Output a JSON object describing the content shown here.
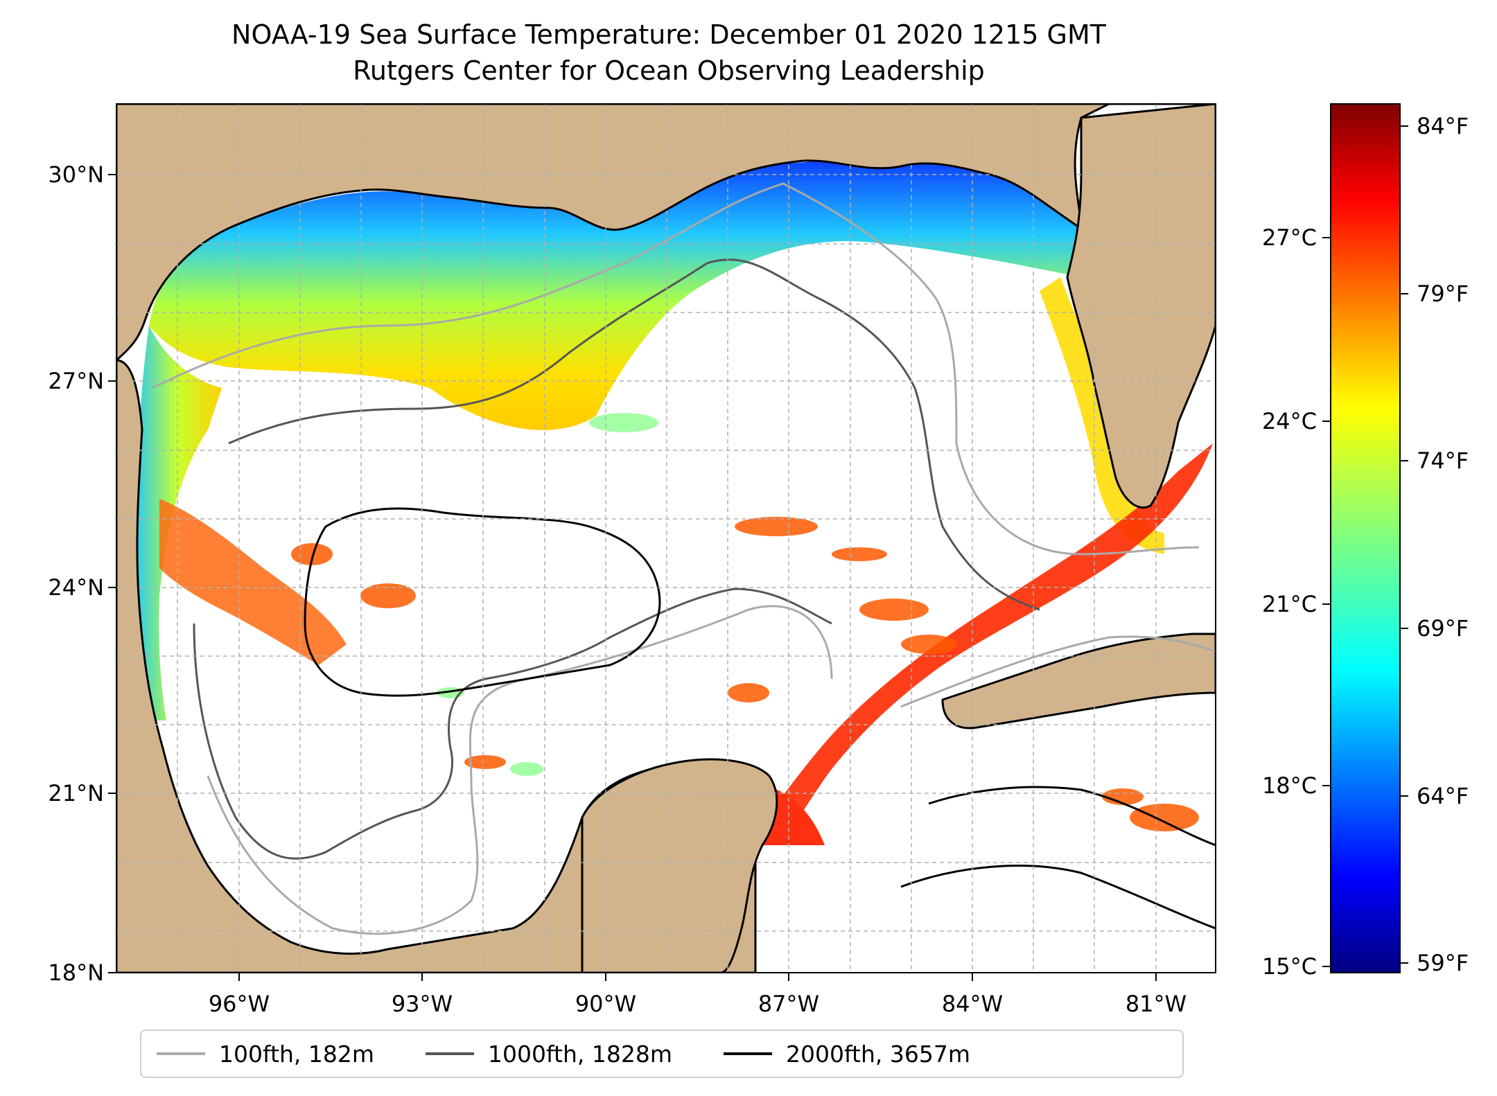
{
  "title": {
    "line1": "NOAA-19 Sea Surface Temperature: December 01 2020 1215 GMT",
    "line2": "Rutgers Center for Ocean Observing Leadership"
  },
  "map": {
    "lat_labels": [
      "30°N",
      "27°N",
      "24°N",
      "21°N",
      "18°N"
    ],
    "lon_labels": [
      "96°W",
      "93°W",
      "90°W",
      "87°W",
      "84°W",
      "81°W"
    ],
    "colors": {
      "land": "#d2b48c",
      "ocean": "#ffffff",
      "coast": "#000000",
      "grid": "#b0b0b0"
    }
  },
  "colorbar": {
    "celsius_labels": [
      "27°C",
      "24°C",
      "21°C",
      "18°C",
      "15°C"
    ],
    "fahrenheit_labels": [
      "84°F",
      "79°F",
      "74°F",
      "69°F",
      "64°F",
      "59°F"
    ],
    "colormap": "jet",
    "range_fahrenheit": [
      59,
      85
    ]
  },
  "legend": {
    "items": [
      {
        "label": "100fth, 182m",
        "color": "#a9a9a9"
      },
      {
        "label": "1000fth, 1828m",
        "color": "#555555"
      },
      {
        "label": "2000fth, 3657m",
        "color": "#000000"
      }
    ]
  }
}
